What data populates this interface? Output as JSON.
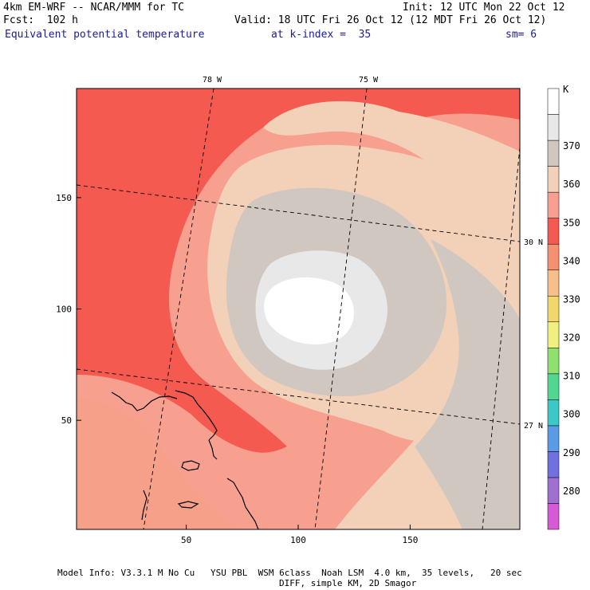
{
  "header": {
    "model": "4km EM-WRF -- NCAR/MMM for TC",
    "forecast": "Fcst:  102 h",
    "init": "Init: 12 UTC Mon 22 Oct 12",
    "valid": "Valid: 18 UTC Fri 26 Oct 12 (12 MDT Fri 26 Oct 12)",
    "field": "Equivalent potential temperature",
    "level": "at k-index =  35",
    "smoothing": "sm= 6"
  },
  "footer": {
    "line1": "Model Info: V3.3.1 M No Cu   YSU PBL  WSM 6class  Noah LSM  4.0 km,  35 levels,   20 sec",
    "line2": "DIFF, simple KM, 2D Smagor"
  },
  "colors": {
    "levels": [
      "#d65ad6",
      "#a070d0",
      "#7070e0",
      "#5a9ae6",
      "#3cc8c8",
      "#50d890",
      "#90e070",
      "#f0f080",
      "#f2d86c",
      "#f7c08a",
      "#f59070",
      "#f55a50",
      "#f7a090",
      "#f3d0b8",
      "#d0c8c0",
      "#e8e8e8",
      "#ffffff"
    ]
  },
  "chart_data": {
    "type": "heatmap",
    "title": "Equivalent potential temperature",
    "x": {
      "range": [
        1,
        199
      ],
      "ticks": [
        50,
        100,
        150
      ]
    },
    "y": {
      "range": [
        1,
        199
      ],
      "ticks": [
        50,
        100,
        150
      ]
    },
    "lon_labels": [
      "78 W",
      "75 W"
    ],
    "lat_labels": [
      "30 N",
      "27 N"
    ],
    "colorbar": {
      "unit": "K",
      "labels": [
        280,
        290,
        300,
        310,
        320,
        330,
        340,
        350,
        360,
        370
      ]
    },
    "field_description": {
      "center_x": 110,
      "center_y": 100,
      "core_value": 370,
      "background_value": 340
    }
  }
}
